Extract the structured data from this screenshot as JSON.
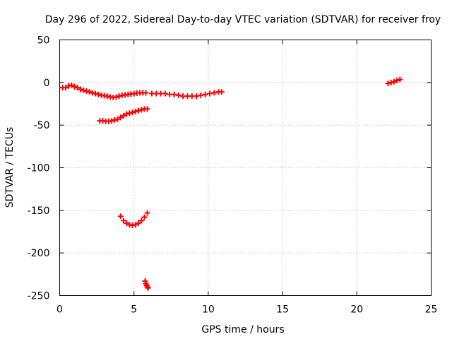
{
  "chart_data": {
    "type": "scatter",
    "title": "Day 296 of 2022, Sidereal Day-to-day VTEC variation (SDTVAR) for receiver froy",
    "xlabel": "GPS time / hours",
    "ylabel": "SDTVAR / TECUs",
    "xlim": [
      0,
      25
    ],
    "ylim": [
      -250,
      50
    ],
    "xticks": [
      0,
      5,
      10,
      15,
      20,
      25
    ],
    "xtick_labels": [
      "0",
      "5",
      "10",
      "15",
      "20",
      "25"
    ],
    "yticks": [
      50,
      0,
      -50,
      -100,
      -150,
      -200,
      -250
    ],
    "ytick_labels": [
      "50",
      "0",
      "-50",
      "-100",
      "-150",
      "-200",
      "-250"
    ],
    "grid": true,
    "marker": "plus",
    "color": "#ff0000",
    "series": [
      {
        "name": "arc-1",
        "points": [
          [
            0.2,
            -6
          ],
          [
            0.4,
            -6
          ],
          [
            0.6,
            -4
          ],
          [
            0.8,
            -3
          ],
          [
            1.0,
            -5
          ],
          [
            1.2,
            -6
          ],
          [
            1.4,
            -8
          ],
          [
            1.6,
            -9
          ],
          [
            1.8,
            -10
          ],
          [
            2.0,
            -11
          ],
          [
            2.2,
            -12
          ],
          [
            2.4,
            -13
          ],
          [
            2.6,
            -14
          ],
          [
            2.8,
            -15
          ],
          [
            3.0,
            -15.5
          ],
          [
            3.2,
            -16
          ],
          [
            3.4,
            -17
          ],
          [
            3.6,
            -17.5
          ],
          [
            3.8,
            -17
          ],
          [
            4.0,
            -16
          ],
          [
            4.2,
            -15
          ],
          [
            4.4,
            -14.5
          ],
          [
            4.6,
            -14
          ],
          [
            4.8,
            -13.5
          ],
          [
            5.0,
            -13
          ],
          [
            5.2,
            -12.5
          ],
          [
            5.4,
            -12
          ],
          [
            5.6,
            -12
          ],
          [
            5.8,
            -12
          ]
        ]
      },
      {
        "name": "arc-2",
        "points": [
          [
            6.2,
            -13
          ],
          [
            6.5,
            -13
          ],
          [
            6.8,
            -13
          ],
          [
            7.1,
            -13
          ],
          [
            7.4,
            -14
          ],
          [
            7.7,
            -14
          ],
          [
            8.0,
            -15
          ],
          [
            8.3,
            -16
          ],
          [
            8.6,
            -16
          ],
          [
            8.9,
            -16
          ],
          [
            9.2,
            -16
          ],
          [
            9.5,
            -15
          ],
          [
            9.8,
            -14
          ],
          [
            10.1,
            -13
          ],
          [
            10.4,
            -12
          ],
          [
            10.7,
            -11
          ],
          [
            10.9,
            -11
          ]
        ]
      },
      {
        "name": "arc-3",
        "points": [
          [
            2.7,
            -45
          ],
          [
            2.9,
            -45
          ],
          [
            3.1,
            -45.5
          ],
          [
            3.3,
            -45.5
          ],
          [
            3.5,
            -45
          ],
          [
            3.7,
            -44
          ],
          [
            3.9,
            -43
          ],
          [
            4.1,
            -41
          ],
          [
            4.3,
            -39
          ],
          [
            4.5,
            -37
          ],
          [
            4.7,
            -36
          ],
          [
            4.9,
            -35
          ],
          [
            5.1,
            -34
          ],
          [
            5.3,
            -33
          ],
          [
            5.5,
            -32
          ],
          [
            5.7,
            -31
          ],
          [
            5.9,
            -31
          ]
        ]
      },
      {
        "name": "arc-4",
        "points": [
          [
            4.1,
            -157
          ],
          [
            4.3,
            -162
          ],
          [
            4.5,
            -165
          ],
          [
            4.7,
            -167
          ],
          [
            4.9,
            -167.5
          ],
          [
            5.1,
            -167
          ],
          [
            5.3,
            -165
          ],
          [
            5.5,
            -162
          ],
          [
            5.7,
            -158
          ],
          [
            5.9,
            -153
          ]
        ]
      },
      {
        "name": "arc-5",
        "points": [
          [
            5.75,
            -233
          ],
          [
            5.8,
            -236
          ],
          [
            5.85,
            -238
          ],
          [
            5.9,
            -240
          ],
          [
            5.95,
            -241
          ]
        ]
      },
      {
        "name": "arc-6",
        "points": [
          [
            22.1,
            -1
          ],
          [
            22.3,
            0
          ],
          [
            22.5,
            1
          ],
          [
            22.7,
            2.5
          ],
          [
            22.9,
            3.5
          ]
        ]
      }
    ]
  }
}
